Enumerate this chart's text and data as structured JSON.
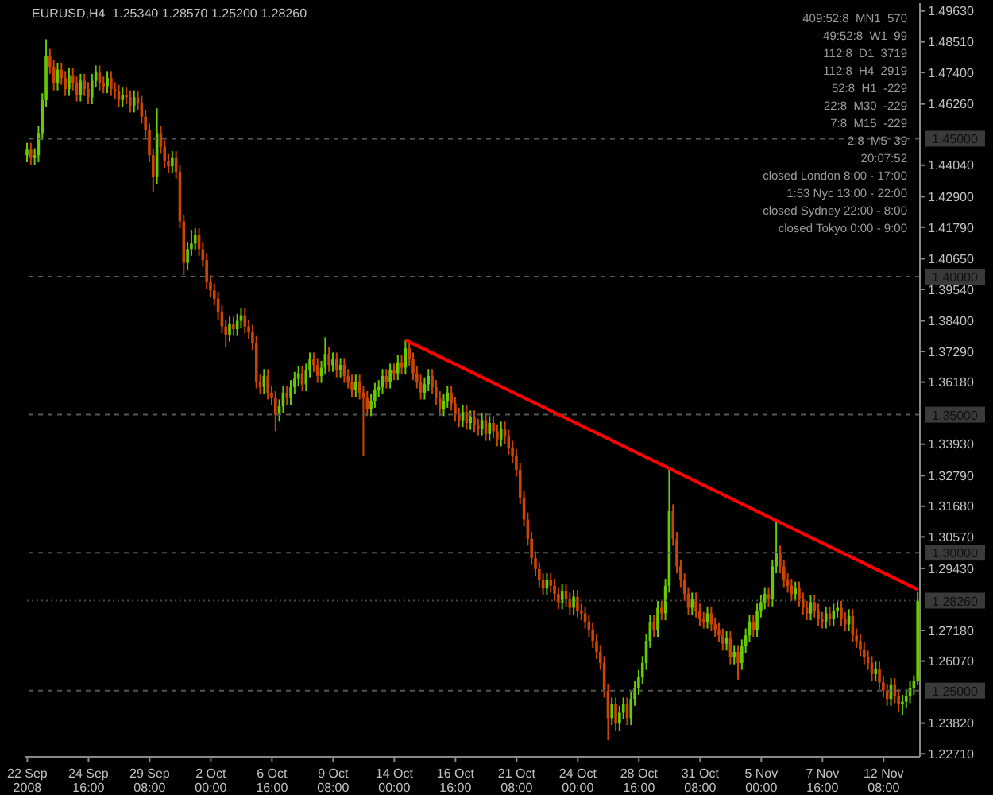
{
  "chart_data": {
    "type": "candlestick",
    "title": "EURUSD,H4  1.25340 1.28570 1.25200 1.28260",
    "categories": [
      "22 Sep 2008",
      null,
      null,
      null,
      null,
      null,
      null,
      null,
      null,
      null,
      null,
      null,
      null,
      null,
      null,
      null,
      "24 Sep 16:00",
      null,
      null,
      null,
      null,
      null,
      null,
      null,
      null,
      null,
      null,
      null,
      null,
      null,
      null,
      null,
      "29 Sep 08:00",
      null,
      null,
      null,
      null,
      null,
      null,
      null,
      null,
      null,
      null,
      null,
      null,
      null,
      null,
      null,
      "2 Oct 00:00",
      null,
      null,
      null,
      null,
      null,
      null,
      null,
      null,
      null,
      null,
      null,
      null,
      null,
      null,
      null,
      "6 Oct 16:00",
      null,
      null,
      null,
      null,
      null,
      null,
      null,
      null,
      null,
      null,
      null,
      null,
      null,
      null,
      null,
      "9 Oct 08:00",
      null,
      null,
      null,
      null,
      null,
      null,
      null,
      null,
      null,
      null,
      null,
      null,
      null,
      null,
      null,
      "14 Oct 00:00",
      null,
      null,
      null,
      null,
      null,
      null,
      null,
      null,
      null,
      null,
      null,
      null,
      null,
      null,
      null,
      "16 Oct 16:00",
      null,
      null,
      null,
      null,
      null,
      null,
      null,
      null,
      null,
      null,
      null,
      null,
      null,
      null,
      null,
      "21 Oct 08:00",
      null,
      null,
      null,
      null,
      null,
      null,
      null,
      null,
      null,
      null,
      null,
      null,
      null,
      null,
      null,
      "24 Oct 00:00",
      null,
      null,
      null,
      null,
      null,
      null,
      null,
      null,
      null,
      null,
      null,
      null,
      null,
      null,
      null,
      "28 Oct 16:00",
      null,
      null,
      null,
      null,
      null,
      null,
      null,
      null,
      null,
      null,
      null,
      null,
      null,
      null,
      null,
      "31 Oct 08:00",
      null,
      null,
      null,
      null,
      null,
      null,
      null,
      null,
      null,
      null,
      null,
      null,
      null,
      null,
      null,
      "5 Nov 00:00",
      null,
      null,
      null,
      null,
      null,
      null,
      null,
      null,
      null,
      null,
      null,
      null,
      null,
      null,
      null,
      "7 Nov 16:00",
      null,
      null,
      null,
      null,
      null,
      null,
      null,
      null,
      null,
      null,
      null,
      null,
      null,
      null,
      null,
      "12 Nov 08:00",
      null,
      null,
      null,
      null,
      null,
      null,
      null,
      null,
      null
    ],
    "series": [
      {
        "colors": [
          "#66cc00",
          "#cc4400",
          "#66cc00",
          "#66cc00",
          "#66cc00",
          "#66cc00",
          "#cc4400",
          "#cc4400",
          "#66cc00",
          "#cc4400",
          "#cc4400",
          "#66cc00",
          "#cc4400",
          "#cc4400",
          "#66cc00",
          "#cc4400",
          "#cc4400",
          "#66cc00",
          "#66cc00",
          "#cc4400",
          "#cc4400",
          "#66cc00",
          "#cc4400",
          "#cc4400",
          "#cc4400",
          "#66cc00",
          "#cc4400",
          "#cc4400",
          "#66cc00",
          "#cc4400",
          "#cc4400",
          "#cc4400",
          "#cc4400",
          "#cc4400",
          "#66cc00",
          "#cc4400",
          "#cc4400",
          "#cc4400",
          "#66cc00",
          "#cc4400",
          "#cc4400",
          "#cc4400",
          "#66cc00",
          "#66cc00",
          "#66cc00",
          "#cc4400",
          "#cc4400",
          "#cc4400",
          "#cc4400",
          "#cc4400",
          "#cc4400",
          "#cc4400",
          "#cc4400",
          "#66cc00",
          "#cc4400",
          "#66cc00",
          "#66cc00",
          "#cc4400",
          "#cc4400",
          "#cc4400",
          "#cc4400",
          "#cc4400",
          "#66cc00",
          "#cc4400",
          "#cc4400",
          "#cc4400",
          "#66cc00",
          "#66cc00",
          "#cc4400",
          "#66cc00",
          "#66cc00",
          "#66cc00",
          "#cc4400",
          "#66cc00",
          "#66cc00",
          "#cc4400",
          "#cc4400",
          "#66cc00",
          "#66cc00",
          "#cc4400",
          "#66cc00",
          "#cc4400",
          "#66cc00",
          "#cc4400",
          "#cc4400",
          "#cc4400",
          "#66cc00",
          "#cc4400",
          "#cc4400",
          "#cc4400",
          "#66cc00",
          "#66cc00",
          "#66cc00",
          "#66cc00",
          "#cc4400",
          "#66cc00",
          "#cc4400",
          "#66cc00",
          "#cc4400",
          "#66cc00",
          "#cc4400",
          "#cc4400",
          "#cc4400",
          "#cc4400",
          "#66cc00",
          "#66cc00",
          "#cc4400",
          "#cc4400",
          "#cc4400",
          "#66cc00",
          "#66cc00",
          "#cc4400",
          "#cc4400",
          "#cc4400",
          "#66cc00",
          "#cc4400",
          "#66cc00",
          "#cc4400",
          "#cc4400",
          "#66cc00",
          "#cc4400",
          "#66cc00",
          "#cc4400",
          "#cc4400",
          "#66cc00",
          "#cc4400",
          "#cc4400",
          "#cc4400",
          "#cc4400",
          "#cc4400",
          "#cc4400",
          "#cc4400",
          "#cc4400",
          "#cc4400",
          "#cc4400",
          "#cc4400",
          "#66cc00",
          "#cc4400",
          "#cc4400",
          "#cc4400",
          "#66cc00",
          "#cc4400",
          "#cc4400",
          "#66cc00",
          "#cc4400",
          "#cc4400",
          "#cc4400",
          "#cc4400",
          "#cc4400",
          "#cc4400",
          "#cc4400",
          "#cc4400",
          "#cc4400",
          "#66cc00",
          "#cc4400",
          "#66cc00",
          "#66cc00",
          "#cc4400",
          "#66cc00",
          "#66cc00",
          "#66cc00",
          "#66cc00",
          "#66cc00",
          "#66cc00",
          "#cc4400",
          "#66cc00",
          "#cc4400",
          "#66cc00",
          "#66cc00",
          "#cc4400",
          "#cc4400",
          "#cc4400",
          "#cc4400",
          "#cc4400",
          "#66cc00",
          "#cc4400",
          "#cc4400",
          "#cc4400",
          "#66cc00",
          "#cc4400",
          "#cc4400",
          "#cc4400",
          "#cc4400",
          "#66cc00",
          "#cc4400",
          "#66cc00",
          "#cc4400",
          "#66cc00",
          "#66cc00",
          "#66cc00",
          "#cc4400",
          "#66cc00",
          "#66cc00",
          "#66cc00",
          "#cc4400",
          "#66cc00",
          "#66cc00",
          "#cc4400",
          "#cc4400",
          "#cc4400",
          "#cc4400",
          "#66cc00",
          "#cc4400",
          "#cc4400",
          "#cc4400",
          "#66cc00",
          "#cc4400",
          "#cc4400",
          "#cc4400",
          "#66cc00",
          "#cc4400",
          "#66cc00",
          "#66cc00",
          "#cc4400",
          "#cc4400",
          "#66cc00",
          "#cc4400",
          "#cc4400",
          "#cc4400",
          "#cc4400",
          "#cc4400",
          "#cc4400",
          "#66cc00",
          "#cc4400",
          "#cc4400",
          "#cc4400",
          "#66cc00",
          "#cc4400",
          "#cc4400",
          "#66cc00",
          "#66cc00",
          "#66cc00",
          "#66cc00",
          "#66cc00"
        ],
        "ohlc": [
          [
            1.444,
            1.4485,
            1.4415,
            1.446
          ],
          [
            1.446,
            1.4485,
            1.4405,
            1.443
          ],
          [
            1.443,
            1.4465,
            1.4405,
            1.444
          ],
          [
            1.444,
            1.4545,
            1.4415,
            1.452
          ],
          [
            1.452,
            1.4665,
            1.4495,
            1.464
          ],
          [
            1.464,
            1.486,
            1.4615,
            1.48
          ],
          [
            1.48,
            1.4825,
            1.4735,
            1.476
          ],
          [
            1.476,
            1.4785,
            1.4675,
            1.47
          ],
          [
            1.47,
            1.4775,
            1.4675,
            1.475
          ],
          [
            1.475,
            1.4775,
            1.4695,
            1.472
          ],
          [
            1.472,
            1.4745,
            1.4655,
            1.468
          ],
          [
            1.468,
            1.4755,
            1.4655,
            1.473
          ],
          [
            1.473,
            1.4755,
            1.4675,
            1.47
          ],
          [
            1.47,
            1.4725,
            1.4635,
            1.466
          ],
          [
            1.466,
            1.4735,
            1.4635,
            1.471
          ],
          [
            1.471,
            1.4735,
            1.4655,
            1.468
          ],
          [
            1.468,
            1.4705,
            1.4625,
            1.465
          ],
          [
            1.465,
            1.4735,
            1.4625,
            1.471
          ],
          [
            1.471,
            1.4765,
            1.4685,
            1.474
          ],
          [
            1.474,
            1.4765,
            1.4675,
            1.47
          ],
          [
            1.47,
            1.4725,
            1.4665,
            1.469
          ],
          [
            1.469,
            1.4745,
            1.4665,
            1.472
          ],
          [
            1.472,
            1.4745,
            1.4655,
            1.468
          ],
          [
            1.468,
            1.4705,
            1.4645,
            1.467
          ],
          [
            1.467,
            1.4695,
            1.4615,
            1.464
          ],
          [
            1.464,
            1.4685,
            1.4615,
            1.466
          ],
          [
            1.466,
            1.4685,
            1.4625,
            1.465
          ],
          [
            1.465,
            1.4675,
            1.4595,
            1.462
          ],
          [
            1.462,
            1.4675,
            1.4595,
            1.465
          ],
          [
            1.465,
            1.4675,
            1.4605,
            1.463
          ],
          [
            1.463,
            1.4655,
            1.4555,
            1.458
          ],
          [
            1.458,
            1.4605,
            1.4505,
            1.453
          ],
          [
            1.453,
            1.4555,
            1.4415,
            1.444
          ],
          [
            1.444,
            1.4465,
            1.4305,
            1.436
          ],
          [
            1.436,
            1.461,
            1.4335,
            1.452
          ],
          [
            1.452,
            1.4545,
            1.4445,
            1.447
          ],
          [
            1.447,
            1.4495,
            1.4395,
            1.442
          ],
          [
            1.442,
            1.4445,
            1.4375,
            1.44
          ],
          [
            1.44,
            1.4455,
            1.4375,
            1.443
          ],
          [
            1.443,
            1.4455,
            1.4355,
            1.438
          ],
          [
            1.438,
            1.4405,
            1.4175,
            1.42
          ],
          [
            1.42,
            1.4225,
            1.4005,
            1.405
          ],
          [
            1.405,
            1.4125,
            1.4025,
            1.41
          ],
          [
            1.41,
            1.417,
            1.4075,
            1.412
          ],
          [
            1.412,
            1.4175,
            1.4095,
            1.415
          ],
          [
            1.415,
            1.4175,
            1.4075,
            1.41
          ],
          [
            1.41,
            1.4125,
            1.4035,
            1.406
          ],
          [
            1.406,
            1.4085,
            1.3955,
            1.398
          ],
          [
            1.398,
            1.4005,
            1.3925,
            1.395
          ],
          [
            1.395,
            1.3975,
            1.3895,
            1.392
          ],
          [
            1.392,
            1.3945,
            1.3845,
            1.387
          ],
          [
            1.387,
            1.3895,
            1.3795,
            1.382
          ],
          [
            1.382,
            1.3845,
            1.3745,
            1.379
          ],
          [
            1.379,
            1.3855,
            1.3765,
            1.383
          ],
          [
            1.383,
            1.3855,
            1.3785,
            1.381
          ],
          [
            1.381,
            1.3865,
            1.3785,
            1.384
          ],
          [
            1.384,
            1.3885,
            1.3815,
            1.386
          ],
          [
            1.386,
            1.3885,
            1.3795,
            1.382
          ],
          [
            1.382,
            1.3845,
            1.3775,
            1.38
          ],
          [
            1.38,
            1.3825,
            1.3735,
            1.376
          ],
          [
            1.376,
            1.3785,
            1.3595,
            1.362
          ],
          [
            1.362,
            1.3645,
            1.3575,
            1.36
          ],
          [
            1.36,
            1.3665,
            1.3575,
            1.364
          ],
          [
            1.364,
            1.3665,
            1.3555,
            1.358
          ],
          [
            1.358,
            1.3605,
            1.3535,
            1.356
          ],
          [
            1.356,
            1.3585,
            1.344,
            1.35
          ],
          [
            1.35,
            1.3555,
            1.3475,
            1.353
          ],
          [
            1.353,
            1.3605,
            1.3505,
            1.358
          ],
          [
            1.358,
            1.3605,
            1.3535,
            1.356
          ],
          [
            1.356,
            1.3625,
            1.3535,
            1.36
          ],
          [
            1.36,
            1.3655,
            1.3575,
            1.363
          ],
          [
            1.363,
            1.3675,
            1.3605,
            1.365
          ],
          [
            1.365,
            1.3675,
            1.3585,
            1.361
          ],
          [
            1.361,
            1.3685,
            1.3585,
            1.366
          ],
          [
            1.366,
            1.3725,
            1.3635,
            1.37
          ],
          [
            1.37,
            1.3725,
            1.3655,
            1.368
          ],
          [
            1.368,
            1.3705,
            1.3615,
            1.364
          ],
          [
            1.364,
            1.3695,
            1.3615,
            1.367
          ],
          [
            1.367,
            1.378,
            1.3645,
            1.372
          ],
          [
            1.372,
            1.3745,
            1.3655,
            1.368
          ],
          [
            1.368,
            1.3725,
            1.3655,
            1.37
          ],
          [
            1.37,
            1.3725,
            1.3635,
            1.366
          ],
          [
            1.366,
            1.3705,
            1.3635,
            1.368
          ],
          [
            1.368,
            1.3705,
            1.3615,
            1.364
          ],
          [
            1.364,
            1.3665,
            1.3595,
            1.362
          ],
          [
            1.362,
            1.3645,
            1.3565,
            1.359
          ],
          [
            1.359,
            1.3645,
            1.3565,
            1.362
          ],
          [
            1.362,
            1.3645,
            1.3555,
            1.358
          ],
          [
            1.358,
            1.3605,
            1.335,
            1.356
          ],
          [
            1.356,
            1.3585,
            1.3495,
            1.352
          ],
          [
            1.352,
            1.3575,
            1.3495,
            1.355
          ],
          [
            1.355,
            1.3615,
            1.3525,
            1.359
          ],
          [
            1.359,
            1.3625,
            1.3565,
            1.36
          ],
          [
            1.36,
            1.3665,
            1.3575,
            1.364
          ],
          [
            1.364,
            1.3665,
            1.3595,
            1.362
          ],
          [
            1.362,
            1.3685,
            1.3595,
            1.366
          ],
          [
            1.366,
            1.3685,
            1.3625,
            1.365
          ],
          [
            1.365,
            1.3715,
            1.3625,
            1.369
          ],
          [
            1.369,
            1.3715,
            1.3645,
            1.367
          ],
          [
            1.367,
            1.377,
            1.3645,
            1.374
          ],
          [
            1.374,
            1.3765,
            1.3675,
            1.37
          ],
          [
            1.37,
            1.3725,
            1.3625,
            1.365
          ],
          [
            1.365,
            1.3675,
            1.3595,
            1.362
          ],
          [
            1.362,
            1.3645,
            1.3555,
            1.358
          ],
          [
            1.358,
            1.3635,
            1.3555,
            1.361
          ],
          [
            1.361,
            1.3665,
            1.3585,
            1.364
          ],
          [
            1.364,
            1.3665,
            1.3575,
            1.36
          ],
          [
            1.36,
            1.3625,
            1.3535,
            1.356
          ],
          [
            1.356,
            1.3585,
            1.3495,
            1.352
          ],
          [
            1.352,
            1.3575,
            1.3495,
            1.355
          ],
          [
            1.355,
            1.3605,
            1.3525,
            1.358
          ],
          [
            1.358,
            1.3605,
            1.3515,
            1.354
          ],
          [
            1.354,
            1.3565,
            1.3475,
            1.35
          ],
          [
            1.35,
            1.3525,
            1.3455,
            1.348
          ],
          [
            1.348,
            1.3535,
            1.3455,
            1.351
          ],
          [
            1.351,
            1.3535,
            1.3445,
            1.347
          ],
          [
            1.347,
            1.3515,
            1.3445,
            1.349
          ],
          [
            1.349,
            1.3515,
            1.3435,
            1.346
          ],
          [
            1.346,
            1.3485,
            1.3425,
            1.345
          ],
          [
            1.345,
            1.3505,
            1.3425,
            1.348
          ],
          [
            1.348,
            1.3505,
            1.3405,
            1.343
          ],
          [
            1.343,
            1.3495,
            1.3405,
            1.347
          ],
          [
            1.347,
            1.3495,
            1.3415,
            1.344
          ],
          [
            1.344,
            1.3465,
            1.3385,
            1.341
          ],
          [
            1.341,
            1.3475,
            1.3385,
            1.345
          ],
          [
            1.345,
            1.3475,
            1.3395,
            1.342
          ],
          [
            1.342,
            1.3445,
            1.3355,
            1.338
          ],
          [
            1.338,
            1.3405,
            1.3325,
            1.335
          ],
          [
            1.335,
            1.3375,
            1.3275,
            1.33
          ],
          [
            1.33,
            1.3325,
            1.3175,
            1.32
          ],
          [
            1.32,
            1.3225,
            1.3095,
            1.312
          ],
          [
            1.312,
            1.3145,
            1.3025,
            1.305
          ],
          [
            1.305,
            1.3075,
            1.2955,
            1.298
          ],
          [
            1.298,
            1.3005,
            1.2915,
            1.294
          ],
          [
            1.294,
            1.2965,
            1.2875,
            1.29
          ],
          [
            1.29,
            1.2925,
            1.2845,
            1.287
          ],
          [
            1.287,
            1.2925,
            1.2845,
            1.29
          ],
          [
            1.29,
            1.2925,
            1.2855,
            1.288
          ],
          [
            1.288,
            1.2905,
            1.2825,
            1.285
          ],
          [
            1.285,
            1.2875,
            1.2795,
            1.282
          ],
          [
            1.282,
            1.2885,
            1.2795,
            1.286
          ],
          [
            1.286,
            1.2885,
            1.2805,
            1.283
          ],
          [
            1.283,
            1.2855,
            1.2775,
            1.28
          ],
          [
            1.28,
            1.2865,
            1.2775,
            1.284
          ],
          [
            1.284,
            1.2865,
            1.2765,
            1.279
          ],
          [
            1.279,
            1.2815,
            1.2755,
            1.278
          ],
          [
            1.278,
            1.2805,
            1.2725,
            1.275
          ],
          [
            1.275,
            1.2775,
            1.2695,
            1.272
          ],
          [
            1.272,
            1.2745,
            1.2655,
            1.268
          ],
          [
            1.268,
            1.2705,
            1.2615,
            1.264
          ],
          [
            1.264,
            1.2665,
            1.2575,
            1.26
          ],
          [
            1.26,
            1.2625,
            1.2475,
            1.25
          ],
          [
            1.25,
            1.2525,
            1.232,
            1.24
          ],
          [
            1.24,
            1.2475,
            1.2375,
            1.245
          ],
          [
            1.245,
            1.2475,
            1.2355,
            1.238
          ],
          [
            1.238,
            1.2445,
            1.2355,
            1.242
          ],
          [
            1.242,
            1.2475,
            1.2395,
            1.245
          ],
          [
            1.245,
            1.2475,
            1.2375,
            1.24
          ],
          [
            1.24,
            1.2495,
            1.2375,
            1.247
          ],
          [
            1.247,
            1.2535,
            1.2445,
            1.251
          ],
          [
            1.251,
            1.2575,
            1.2485,
            1.255
          ],
          [
            1.255,
            1.2625,
            1.2525,
            1.26
          ],
          [
            1.26,
            1.2705,
            1.2575,
            1.268
          ],
          [
            1.268,
            1.2775,
            1.2655,
            1.275
          ],
          [
            1.275,
            1.2775,
            1.2695,
            1.272
          ],
          [
            1.272,
            1.2825,
            1.2695,
            1.28
          ],
          [
            1.28,
            1.2825,
            1.2755,
            1.278
          ],
          [
            1.278,
            1.2905,
            1.2755,
            1.288
          ],
          [
            1.288,
            1.33,
            1.2855,
            1.315
          ],
          [
            1.315,
            1.3175,
            1.3025,
            1.305
          ],
          [
            1.305,
            1.3075,
            1.2925,
            1.295
          ],
          [
            1.295,
            1.2975,
            1.2875,
            1.29
          ],
          [
            1.29,
            1.2925,
            1.2825,
            1.285
          ],
          [
            1.285,
            1.2875,
            1.2775,
            1.28
          ],
          [
            1.28,
            1.2855,
            1.2775,
            1.283
          ],
          [
            1.283,
            1.2855,
            1.2765,
            1.279
          ],
          [
            1.279,
            1.2815,
            1.2735,
            1.276
          ],
          [
            1.276,
            1.2785,
            1.2725,
            1.275
          ],
          [
            1.275,
            1.2805,
            1.2725,
            1.278
          ],
          [
            1.278,
            1.2805,
            1.2715,
            1.274
          ],
          [
            1.274,
            1.2765,
            1.2695,
            1.272
          ],
          [
            1.272,
            1.2745,
            1.2675,
            1.27
          ],
          [
            1.27,
            1.2725,
            1.2645,
            1.267
          ],
          [
            1.267,
            1.2715,
            1.2645,
            1.269
          ],
          [
            1.269,
            1.2715,
            1.2595,
            1.262
          ],
          [
            1.262,
            1.2665,
            1.2595,
            1.264
          ],
          [
            1.264,
            1.2665,
            1.254,
            1.26
          ],
          [
            1.26,
            1.2685,
            1.2575,
            1.266
          ],
          [
            1.266,
            1.2725,
            1.2635,
            1.27
          ],
          [
            1.27,
            1.2775,
            1.2675,
            1.275
          ],
          [
            1.275,
            1.2775,
            1.2695,
            1.272
          ],
          [
            1.272,
            1.2815,
            1.2695,
            1.279
          ],
          [
            1.279,
            1.2845,
            1.2765,
            1.282
          ],
          [
            1.282,
            1.2875,
            1.2795,
            1.285
          ],
          [
            1.285,
            1.2875,
            1.2805,
            1.283
          ],
          [
            1.283,
            1.2975,
            1.2805,
            1.295
          ],
          [
            1.295,
            1.311,
            1.2925,
            1.3
          ],
          [
            1.3,
            1.3025,
            1.2925,
            1.295
          ],
          [
            1.295,
            1.2975,
            1.2875,
            1.29
          ],
          [
            1.29,
            1.2925,
            1.2855,
            1.288
          ],
          [
            1.288,
            1.2905,
            1.2825,
            1.285
          ],
          [
            1.285,
            1.2895,
            1.2825,
            1.287
          ],
          [
            1.287,
            1.2895,
            1.2805,
            1.283
          ],
          [
            1.283,
            1.2855,
            1.2775,
            1.28
          ],
          [
            1.28,
            1.2825,
            1.2755,
            1.278
          ],
          [
            1.278,
            1.2845,
            1.2755,
            1.282
          ],
          [
            1.282,
            1.2845,
            1.2765,
            1.279
          ],
          [
            1.279,
            1.2815,
            1.2735,
            1.276
          ],
          [
            1.276,
            1.2785,
            1.2725,
            1.275
          ],
          [
            1.275,
            1.2805,
            1.2725,
            1.278
          ],
          [
            1.278,
            1.2805,
            1.2735,
            1.276
          ],
          [
            1.276,
            1.2815,
            1.2735,
            1.279
          ],
          [
            1.279,
            1.2825,
            1.2765,
            1.28
          ],
          [
            1.28,
            1.2825,
            1.2735,
            1.276
          ],
          [
            1.276,
            1.2785,
            1.2715,
            1.274
          ],
          [
            1.274,
            1.2795,
            1.2715,
            1.277
          ],
          [
            1.277,
            1.2795,
            1.2675,
            1.27
          ],
          [
            1.27,
            1.2725,
            1.2655,
            1.268
          ],
          [
            1.268,
            1.2705,
            1.2625,
            1.265
          ],
          [
            1.265,
            1.2675,
            1.2595,
            1.262
          ],
          [
            1.262,
            1.2645,
            1.2575,
            1.26
          ],
          [
            1.26,
            1.2625,
            1.2535,
            1.256
          ],
          [
            1.256,
            1.2605,
            1.2535,
            1.258
          ],
          [
            1.258,
            1.2605,
            1.2505,
            1.253
          ],
          [
            1.253,
            1.2555,
            1.2475,
            1.25
          ],
          [
            1.25,
            1.2525,
            1.2445,
            1.247
          ],
          [
            1.247,
            1.2545,
            1.2445,
            1.252
          ],
          [
            1.252,
            1.2545,
            1.2455,
            1.248
          ],
          [
            1.248,
            1.2505,
            1.2425,
            1.245
          ],
          [
            1.245,
            1.2485,
            1.241,
            1.246
          ],
          [
            1.246,
            1.2505,
            1.2435,
            1.248
          ],
          [
            1.248,
            1.2535,
            1.2455,
            1.251
          ],
          [
            1.251,
            1.2555,
            1.2485,
            1.2534
          ],
          [
            1.2534,
            1.2857,
            1.252,
            1.2826
          ]
        ]
      },
      {
        "type": "line",
        "color": "#ff0000",
        "values": [
          null,
          null,
          null,
          null,
          null,
          null,
          null,
          null,
          null,
          null,
          null,
          null,
          null,
          null,
          null,
          null,
          null,
          null,
          null,
          null,
          null,
          null,
          null,
          null,
          null,
          null,
          null,
          null,
          null,
          null,
          null,
          null,
          null,
          null,
          null,
          null,
          null,
          null,
          null,
          null,
          null,
          null,
          null,
          null,
          null,
          null,
          null,
          null,
          null,
          null,
          null,
          null,
          null,
          null,
          null,
          null,
          null,
          null,
          null,
          null,
          null,
          null,
          null,
          null,
          null,
          null,
          null,
          null,
          null,
          null,
          null,
          null,
          null,
          null,
          null,
          null,
          null,
          null,
          null,
          null,
          null,
          null,
          null,
          null,
          null,
          null,
          null,
          null,
          null,
          null,
          null,
          null,
          null,
          null,
          null,
          null,
          null,
          null,
          null,
          1.377,
          null,
          null,
          null,
          null,
          null,
          null,
          null,
          null,
          null,
          null,
          null,
          null,
          null,
          null,
          null,
          null,
          null,
          null,
          null,
          null,
          null,
          null,
          null,
          null,
          null,
          null,
          null,
          null,
          null,
          null,
          null,
          null,
          null,
          null,
          null,
          null,
          null,
          null,
          null,
          null,
          null,
          null,
          null,
          null,
          null,
          null,
          null,
          null,
          null,
          null,
          null,
          null,
          null,
          null,
          null,
          null,
          null,
          null,
          null,
          null,
          null,
          null,
          null,
          null,
          null,
          null,
          null,
          null,
          null,
          null,
          null,
          null,
          null,
          null,
          null,
          null,
          null,
          null,
          null,
          null,
          null,
          null,
          null,
          null,
          null,
          null,
          null,
          null,
          null,
          null,
          null,
          null,
          null,
          null,
          null,
          null,
          null,
          null,
          null,
          null,
          null,
          null,
          null,
          null,
          null,
          null,
          null,
          null,
          null,
          null,
          null,
          null,
          null,
          null,
          null,
          null,
          null,
          null,
          null,
          null,
          null,
          null,
          null,
          null,
          null,
          null,
          null,
          null,
          null,
          null,
          null,
          null,
          null,
          1.2866
        ]
      }
    ],
    "ylim": [
      1.226,
      1.4991
    ],
    "yticks": [
      {
        "value": 1.4963,
        "label": "1.49630"
      },
      {
        "value": 1.4851,
        "label": "1.48510"
      },
      {
        "value": 1.474,
        "label": "1.47400"
      },
      {
        "value": 1.4626,
        "label": "1.46260"
      },
      {
        "value": 1.4404,
        "label": "1.44040"
      },
      {
        "value": 1.429,
        "label": "1.42900"
      },
      {
        "value": 1.4179,
        "label": "1.41790"
      },
      {
        "value": 1.4065,
        "label": "1.40650"
      },
      {
        "value": 1.3954,
        "label": "1.39540"
      },
      {
        "value": 1.384,
        "label": "1.38400"
      },
      {
        "value": 1.3729,
        "label": "1.37290"
      },
      {
        "value": 1.3618,
        "label": "1.36180"
      },
      {
        "value": 1.3393,
        "label": "1.33930"
      },
      {
        "value": 1.3279,
        "label": "1.32790"
      },
      {
        "value": 1.3168,
        "label": "1.31680"
      },
      {
        "value": 1.3057,
        "label": "1.30570"
      },
      {
        "value": 1.2943,
        "label": "1.29430"
      },
      {
        "value": 1.2718,
        "label": "1.27180"
      },
      {
        "value": 1.2607,
        "label": "1.26070"
      },
      {
        "value": 1.2382,
        "label": "1.23820"
      },
      {
        "value": 1.2271,
        "label": "1.22710"
      }
    ],
    "ref_lines": [
      {
        "axis": "y",
        "value": 1.45,
        "label": "1.45000",
        "color": "#555555",
        "line_style": "dashed"
      },
      {
        "axis": "y",
        "value": 1.4,
        "label": "1.40000",
        "color": "#555555",
        "line_style": "dashed"
      },
      {
        "axis": "y",
        "value": 1.35,
        "label": "1.35000",
        "color": "#555555",
        "line_style": "dashed"
      },
      {
        "axis": "y",
        "value": 1.3,
        "label": "1.30000",
        "color": "#555555",
        "line_style": "dashed"
      },
      {
        "axis": "y",
        "value": 1.25,
        "label": "1.25000",
        "color": "#555555",
        "line_style": "dashed"
      },
      {
        "axis": "y",
        "value": 1.2826,
        "label": "1.28260",
        "color": "#444444",
        "line_style": "dotted"
      }
    ],
    "annotations": [
      "409:52:8  MN1  570",
      "49:52:8  W1  99",
      "112:8  D1  3719",
      "112:8  H4  2919",
      "52:8  H1  -229",
      "22:8  M30  -229",
      "7:8  M15  -229",
      "2:8  M5  39",
      "20:07:52",
      "closed London 8:00 - 17:00",
      "1:53 Nyc 13:00 - 22:00",
      "closed Sydney 22:00 - 8:00",
      "closed Tokyo 0:00 - 9:00"
    ]
  }
}
